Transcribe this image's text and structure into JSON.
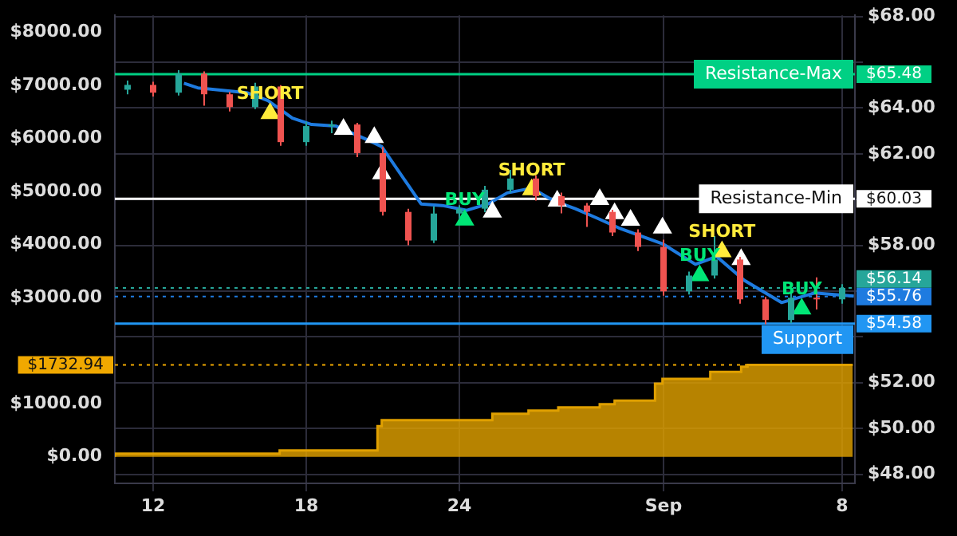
{
  "chart_data": {
    "type": "candlestick",
    "xlim": [
      "--08-10T12:00",
      "--09-08T12:00"
    ],
    "xticks": [
      {
        "value": "--08-12",
        "label": "12"
      },
      {
        "value": "--08-18",
        "label": "18"
      },
      {
        "value": "--08-24",
        "label": "24"
      },
      {
        "value": "--09-01",
        "label": "Sep"
      },
      {
        "value": "--09-08",
        "label": "8"
      }
    ],
    "ylim": [
      -500,
      8320
    ],
    "yticks": [
      {
        "value": 0,
        "label": "$0.00"
      },
      {
        "value": 1000,
        "label": "$1000.00"
      },
      {
        "value": 1732.94,
        "label": "$1732.94"
      },
      {
        "value": 3000,
        "label": "$3000.00"
      },
      {
        "value": 4000,
        "label": "$4000.00"
      },
      {
        "value": 5000,
        "label": "$5000.00"
      },
      {
        "value": 6000,
        "label": "$6000.00"
      },
      {
        "value": 7000,
        "label": "$7000.00"
      },
      {
        "value": 8000,
        "label": "$8000.00"
      }
    ],
    "y2lim": [
      47.6,
      68.05
    ],
    "y2ticks": [
      {
        "value": 48,
        "label": "$48.00"
      },
      {
        "value": 50,
        "label": "$50.00"
      },
      {
        "value": 52,
        "label": "$52.00"
      },
      {
        "value": 54,
        "label": null
      },
      {
        "value": 54.58,
        "label": "$54.58"
      },
      {
        "value": 55.76,
        "label": "$55.76"
      },
      {
        "value": 56,
        "label": null
      },
      {
        "value": 56.14,
        "label": "$56.14"
      },
      {
        "value": 58,
        "label": "$58.00"
      },
      {
        "value": 60,
        "label": null
      },
      {
        "value": 60.03,
        "label": "$60.03"
      },
      {
        "value": 62,
        "label": "$62.00"
      },
      {
        "value": 64,
        "label": "$64.00"
      },
      {
        "value": 65.48,
        "label": "$65.48"
      },
      {
        "value": 66,
        "label": null
      },
      {
        "value": 68,
        "label": "$68.00"
      }
    ],
    "grid": true,
    "series": [
      {
        "type": "step",
        "axis": "y",
        "color": "#e0a000",
        "x": [
          "--08-10T12:00",
          "--08-16T23:00",
          "--08-20T19:00",
          "--08-20T23:00",
          "--08-25T07:00",
          "--08-26T17:00",
          "--08-27T21:00",
          "--08-29T12:00",
          "--08-30T02:00",
          "--08-31T16:00",
          "--08-31T23:00",
          "--09-02T20:00",
          "--09-04T01:00",
          "--09-04T07:00",
          "--09-06T13:00",
          "--09-08T10:00"
        ],
        "values": [
          0,
          60,
          120,
          580,
          690,
          810,
          870,
          930,
          990,
          1060,
          1380,
          1470,
          1600,
          1700,
          1732.94,
          1732.94
        ]
      },
      {
        "type": "line",
        "axis": "y2",
        "color": "#1e7be0",
        "x": [
          "--08-13T05:00",
          "--08-13T18:00",
          "--08-15T16:00",
          "--08-16T12:00",
          "--08-17T11:00",
          "--08-18T05:00",
          "--08-19T04:00",
          "--08-20T11:00",
          "--08-20T23:00",
          "--08-22T12:00",
          "--08-23T08:00",
          "--08-24T07:00",
          "--08-25T03:00",
          "--08-25T21:00",
          "--08-26T20:00",
          "--08-27T17:00",
          "--08-28T13:00",
          "--08-29T10:00",
          "--08-30T06:00",
          "--08-31T23:00",
          "--09-02T06:00",
          "--09-03T02:00",
          "--09-04T04:00",
          "--09-05T15:00",
          "--09-06T22:00",
          "--09-08T11:00"
        ],
        "values": [
          65.08,
          64.88,
          64.67,
          64.32,
          63.56,
          63.28,
          63.21,
          62.58,
          62.31,
          59.81,
          59.74,
          59.53,
          59.81,
          60.29,
          60.5,
          59.94,
          59.6,
          59.18,
          58.76,
          58.07,
          57.17,
          57.51,
          56.47,
          55.5,
          55.92,
          55.78
        ]
      },
      {
        "axis": "y2",
        "x": [
          "--08-11",
          "--08-12",
          "--08-13",
          "--08-14",
          "--08-15",
          "--08-16",
          "--08-17",
          "--08-18",
          "--08-19",
          "--08-20",
          "--08-21",
          "--08-22",
          "--08-23",
          "--08-24",
          "--08-25",
          "--08-26",
          "--08-27",
          "--08-28",
          "--08-29",
          "--08-30",
          "--08-31",
          "--09-01",
          "--09-02",
          "--09-03",
          "--09-04",
          "--09-05",
          "--09-06",
          "--09-07",
          "--09-08"
        ],
        "ohlc": [
          [
            64.8,
            65.2,
            64.6,
            65.01
          ],
          [
            65.01,
            65.15,
            64.5,
            64.67
          ],
          [
            64.67,
            65.65,
            64.55,
            65.5
          ],
          [
            65.5,
            65.6,
            64.1,
            64.6
          ],
          [
            64.6,
            64.7,
            63.85,
            64.04
          ],
          [
            64.04,
            65.1,
            63.95,
            64.94
          ],
          [
            64.94,
            65.0,
            62.35,
            62.51
          ],
          [
            62.51,
            63.4,
            62.35,
            63.21
          ],
          [
            63.21,
            63.45,
            62.9,
            63.28
          ],
          [
            63.28,
            63.35,
            61.85,
            62.03
          ],
          [
            62.03,
            62.3,
            59.3,
            59.46
          ],
          [
            59.46,
            59.6,
            58.0,
            58.21
          ],
          [
            58.21,
            59.7,
            58.1,
            59.39
          ],
          [
            59.39,
            59.75,
            59.15,
            59.6
          ],
          [
            59.6,
            60.6,
            59.45,
            60.43
          ],
          [
            60.43,
            61.3,
            60.3,
            60.92
          ],
          [
            60.92,
            61.05,
            59.95,
            60.15
          ],
          [
            60.15,
            60.3,
            59.4,
            59.74
          ],
          [
            59.74,
            59.85,
            58.8,
            59.46
          ],
          [
            59.46,
            59.55,
            58.4,
            58.56
          ],
          [
            58.56,
            58.7,
            57.75,
            57.93
          ],
          [
            57.93,
            58.25,
            55.8,
            55.99
          ],
          [
            55.99,
            56.85,
            55.85,
            56.68
          ],
          [
            56.68,
            58.4,
            56.55,
            57.38
          ],
          [
            57.38,
            57.5,
            55.45,
            55.64
          ],
          [
            55.64,
            55.75,
            54.55,
            54.74
          ],
          [
            54.74,
            55.9,
            54.6,
            55.71
          ],
          [
            55.71,
            56.6,
            55.2,
            55.64
          ],
          [
            55.64,
            56.3,
            55.45,
            56.14
          ]
        ]
      },
      {
        "type": "scatter",
        "axis": "y2",
        "marker": "triangle",
        "name": "SHORT",
        "color": "#ffeb3b",
        "x": [
          "--08-16T14:00",
          "--08-26T20:00",
          "--09-03T07:00"
        ],
        "values": [
          63.76,
          60.43,
          57.72
        ]
      },
      {
        "type": "scatter",
        "axis": "y2",
        "marker": "triangle",
        "color": "#ffffff",
        "x": [
          "--08-19T11:00",
          "--08-20T16:00",
          "--08-20T23:00",
          "--08-25T07:00",
          "--08-27T20:00",
          "--08-29T12:00",
          "--08-30T02:00",
          "--08-30T17:00",
          "--08-31T23:00",
          "--09-04T01:00"
        ],
        "values": [
          63.07,
          62.72,
          61.13,
          59.46,
          59.94,
          60.01,
          59.39,
          59.1,
          58.76,
          57.38
        ]
      },
      {
        "type": "scatter",
        "axis": "y2",
        "marker": "triangle",
        "name": "BUY",
        "color": "#00e676",
        "x": [
          "--08-24T05:00",
          "--09-02T10:00",
          "--09-06T10:00"
        ],
        "values": [
          59.11,
          56.68,
          55.22
        ]
      }
    ],
    "ref_lines": [
      {
        "axis": "y2",
        "value": 65.48,
        "label": "Resistance-Max",
        "color": "#00d084"
      },
      {
        "axis": "y2",
        "value": 60.03,
        "label": "Resistance-Min",
        "color": "#ffffff"
      },
      {
        "axis": "y2",
        "value": 56.14,
        "color": "#26a69a",
        "line_style": "dotted"
      },
      {
        "axis": "y2",
        "value": 55.76,
        "color": "#1e7be0",
        "line_style": "dotted"
      },
      {
        "axis": "y2",
        "value": 54.58,
        "label": "Support",
        "color": "#2196f3"
      },
      {
        "axis": "y",
        "value": 1732.94,
        "color": "#f0a800",
        "line_style": "dotted"
      }
    ]
  }
}
